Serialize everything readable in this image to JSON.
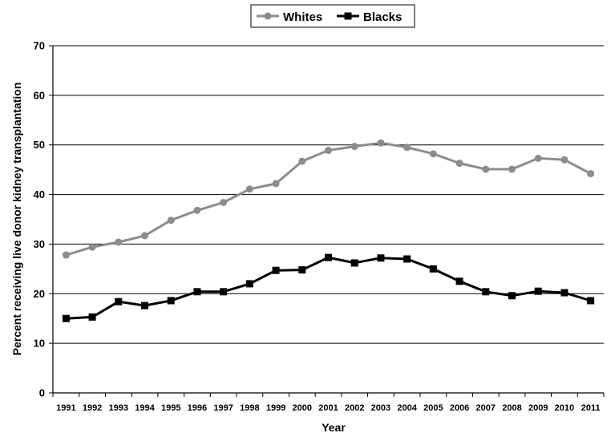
{
  "chart_data": {
    "type": "line",
    "xlabel": "Year",
    "ylabel": "Percent receiving live donor kidney transplantation",
    "ylim": [
      0,
      70
    ],
    "yticks": [
      0,
      10,
      20,
      30,
      40,
      50,
      60,
      70
    ],
    "grid": "horizontal",
    "legend_position": "top-center",
    "x": [
      "1991",
      "1992",
      "1993",
      "1994",
      "1995",
      "1996",
      "1997",
      "1998",
      "1999",
      "2000",
      "2001",
      "2002",
      "2003",
      "2004",
      "2005",
      "2006",
      "2007",
      "2008",
      "2009",
      "2010",
      "2011"
    ],
    "series": [
      {
        "name": "Whites",
        "color": "#8c8c8c",
        "marker": "circle",
        "values": [
          27.8,
          29.4,
          30.4,
          31.7,
          34.8,
          36.8,
          38.4,
          41.1,
          42.2,
          46.7,
          48.9,
          49.7,
          50.4,
          49.5,
          48.2,
          46.3,
          45.1,
          45.1,
          47.3,
          47.0,
          44.2
        ]
      },
      {
        "name": "Blacks",
        "color": "#000000",
        "marker": "square",
        "values": [
          15.0,
          15.3,
          18.4,
          17.6,
          18.6,
          20.4,
          20.4,
          22.0,
          24.7,
          24.8,
          27.3,
          26.2,
          27.2,
          27.0,
          25.0,
          22.5,
          20.4,
          19.6,
          20.5,
          20.2,
          18.6
        ]
      }
    ]
  }
}
